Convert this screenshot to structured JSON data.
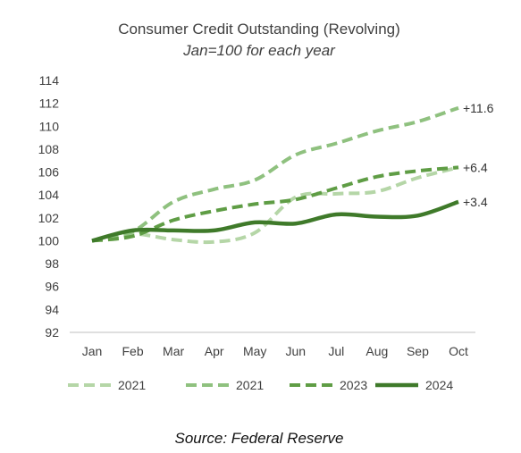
{
  "chart_data": {
    "type": "line",
    "title": "Consumer Credit Outstanding (Revolving)",
    "subtitle": "Jan=100 for each year",
    "categories": [
      "Jan",
      "Feb",
      "Mar",
      "Apr",
      "May",
      "Jun",
      "Jul",
      "Aug",
      "Sep",
      "Oct"
    ],
    "ylim": [
      92,
      114
    ],
    "yticks": [
      92,
      94,
      96,
      98,
      100,
      102,
      104,
      106,
      108,
      110,
      112,
      114
    ],
    "grid": false,
    "legend_position": "bottom",
    "series": [
      {
        "name": "2021",
        "color": "#b5d6a7",
        "dash": "dashed",
        "values": [
          100,
          100.6,
          100.1,
          99.9,
          100.7,
          103.8,
          104.1,
          104.3,
          105.5,
          106.4
        ],
        "end_label": ""
      },
      {
        "name": "2021",
        "color": "#8fc17f",
        "dash": "dashed",
        "values": [
          100,
          100.8,
          103.4,
          104.5,
          105.3,
          107.5,
          108.5,
          109.6,
          110.4,
          111.6
        ],
        "end_label": "+11.6"
      },
      {
        "name": "2023",
        "color": "#5f9d45",
        "dash": "dashed",
        "values": [
          100,
          100.4,
          101.8,
          102.6,
          103.2,
          103.6,
          104.6,
          105.6,
          106.1,
          106.4
        ],
        "end_label": "+6.4"
      },
      {
        "name": "2024",
        "color": "#3f7a2a",
        "dash": "solid",
        "values": [
          100,
          100.9,
          100.9,
          100.9,
          101.6,
          101.5,
          102.3,
          102.1,
          102.2,
          103.4
        ],
        "end_label": "+3.4"
      }
    ],
    "source": "Source: Federal Reserve"
  }
}
